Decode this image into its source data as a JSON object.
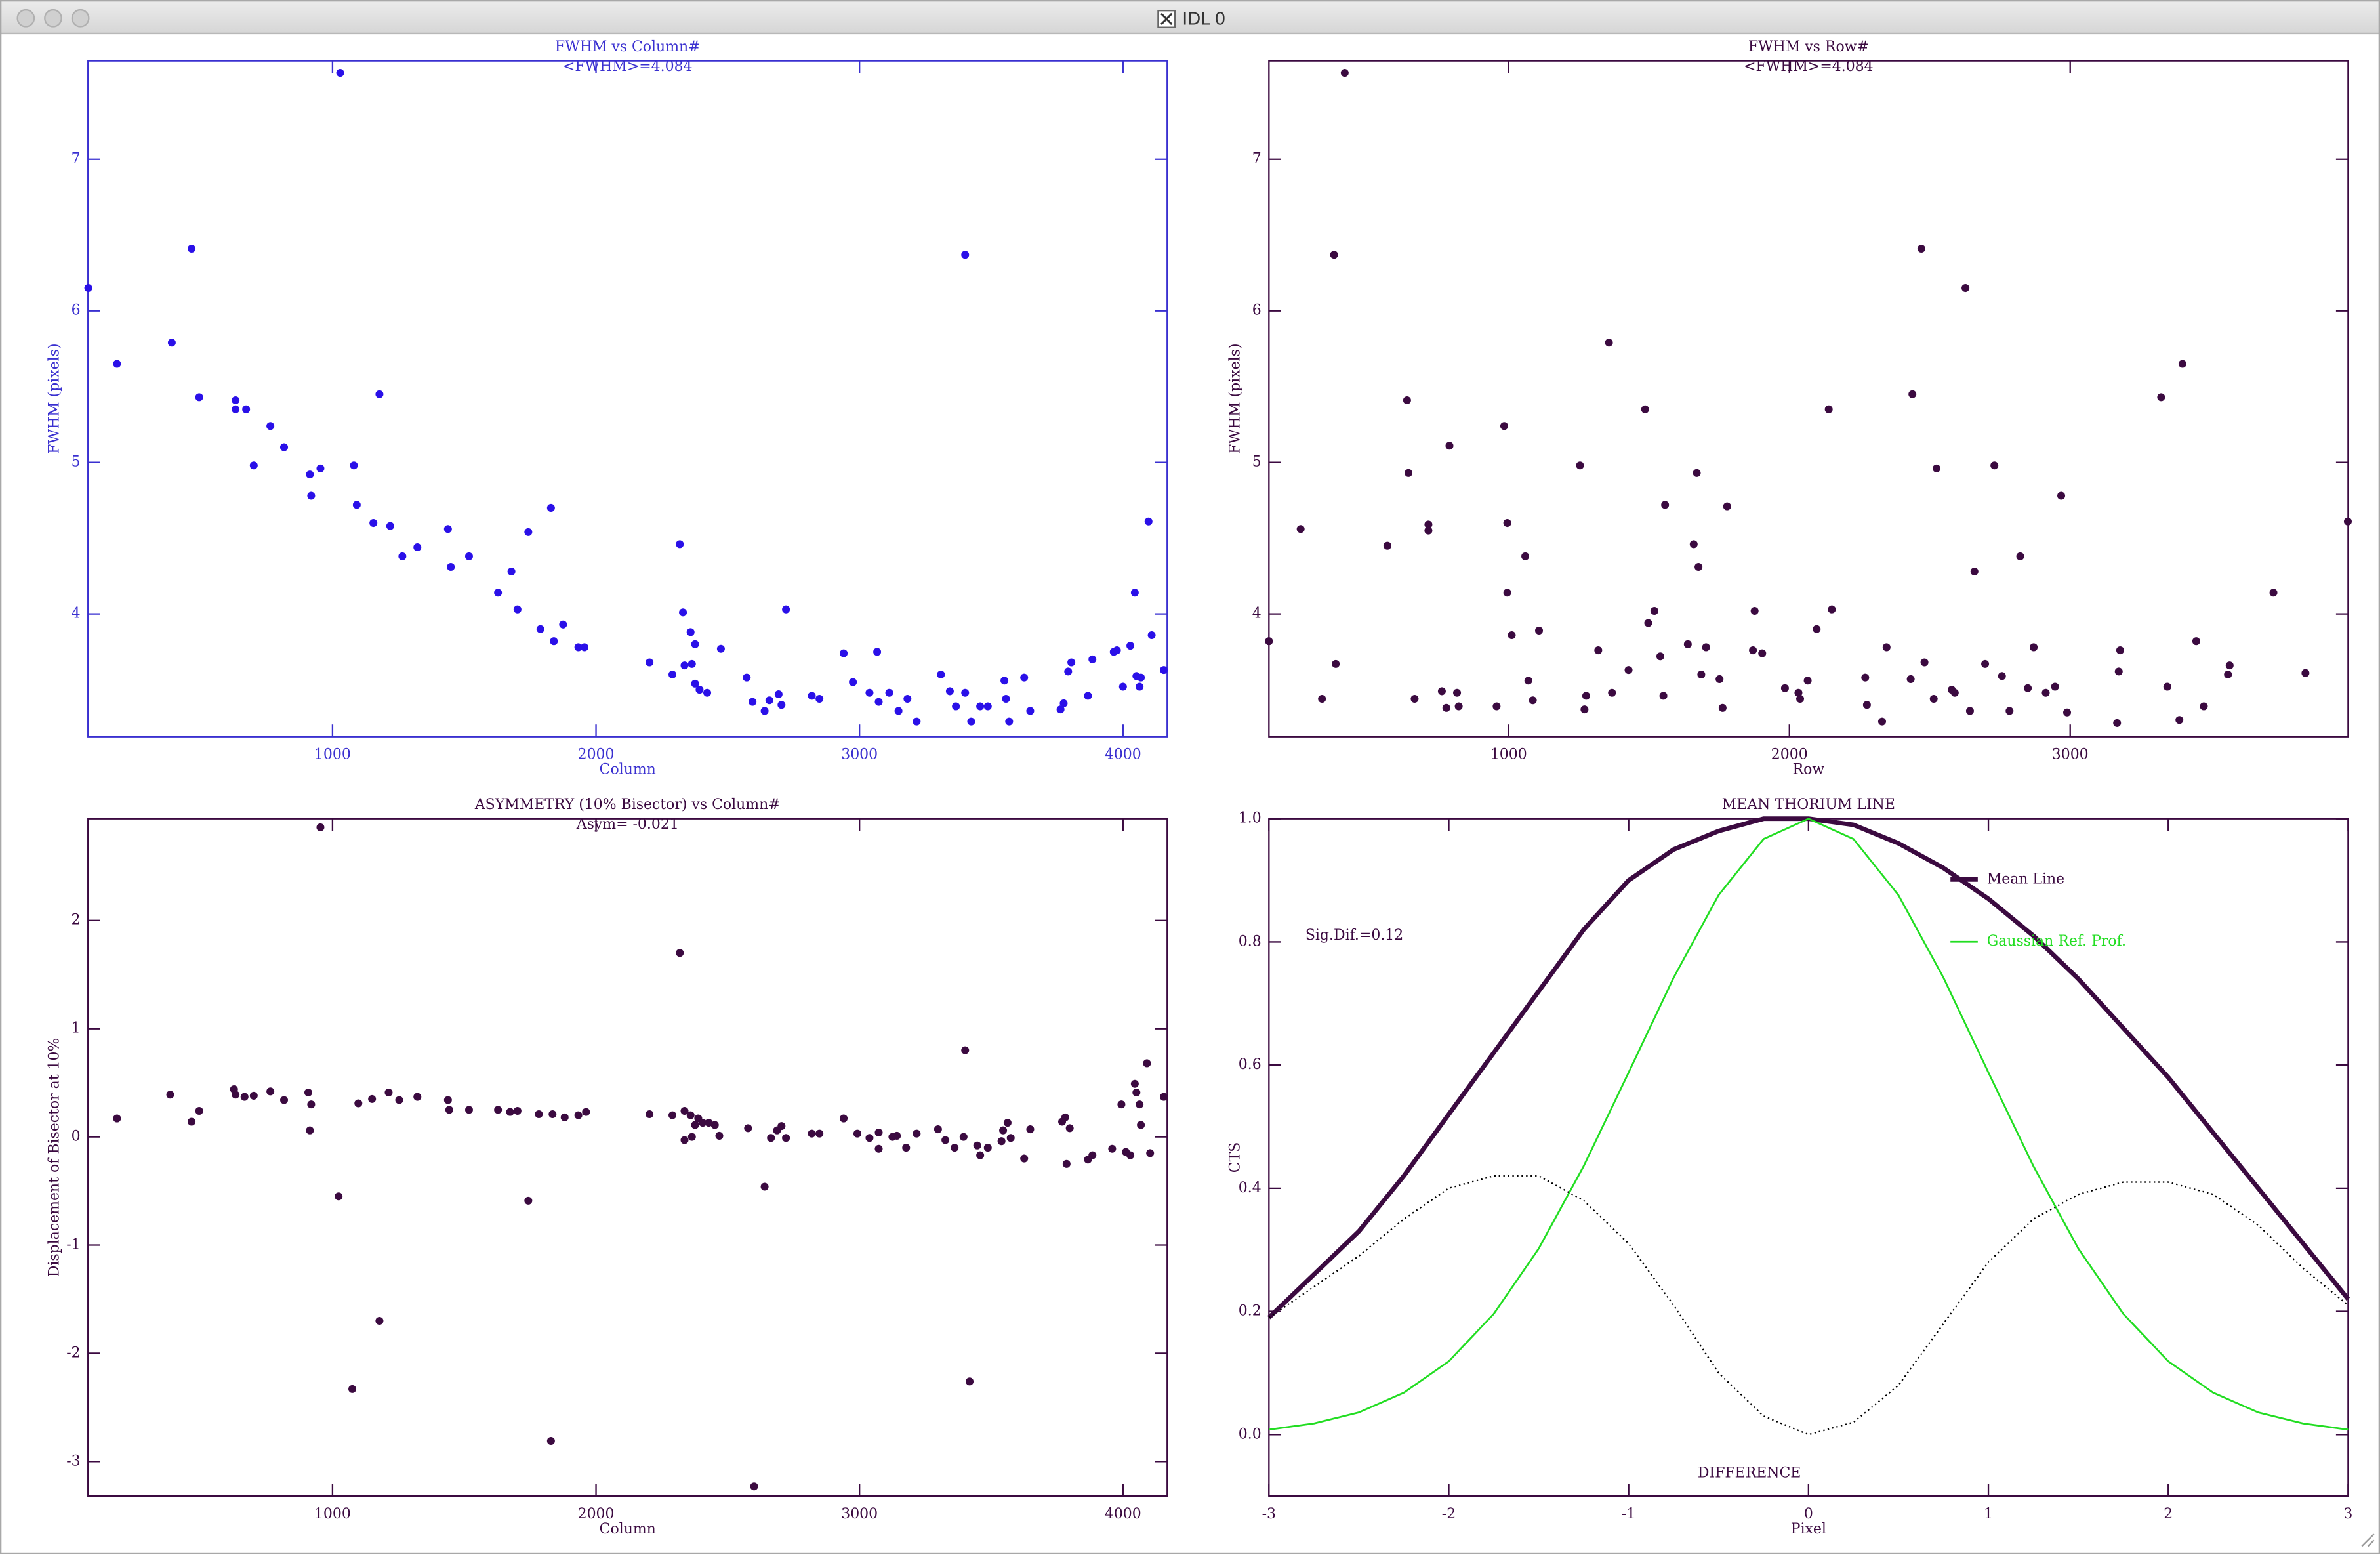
{
  "window": {
    "title": "IDL 0"
  },
  "chart_data": [
    {
      "type": "scatter",
      "title": "FWHM  vs  Column#",
      "subtitle": "<FWHM>=4.084",
      "x_label": "Column",
      "y_label": "FWHM (pixels)",
      "color": "#2a10e8",
      "axis_color": "#3a30d0",
      "xlim": [
        72,
        4168
      ],
      "ylim": [
        3.19,
        7.65
      ],
      "xticks": [
        1000,
        2000,
        3000,
        4000
      ],
      "yticks": [
        4,
        5,
        6,
        7
      ],
      "x": [
        73,
        182,
        390,
        465,
        494,
        632,
        632,
        672,
        701,
        764,
        816,
        914,
        919,
        954,
        1029,
        1081,
        1092,
        1155,
        1178,
        1219,
        1265,
        1322,
        1438,
        1449,
        1518,
        1628,
        1679,
        1702,
        1743,
        1789,
        1829,
        1840,
        1875,
        1933,
        1956,
        2203,
        2290,
        2318,
        2330,
        2336,
        2359,
        2364,
        2376,
        2376,
        2393,
        2422,
        2474,
        2572,
        2594,
        2640,
        2658,
        2693,
        2704,
        2721,
        2819,
        2848,
        2940,
        2975,
        3038,
        3067,
        3073,
        3113,
        3148,
        3182,
        3217,
        3309,
        3343,
        3366,
        3401,
        3401,
        3424,
        3458,
        3487,
        3550,
        3556,
        3568,
        3625,
        3648,
        3763,
        3775,
        3792,
        3804,
        3867,
        3884,
        3965,
        3977,
        4000,
        4028,
        4045,
        4051,
        4063,
        4068,
        4097,
        4109,
        4155
      ],
      "values": [
        6.15,
        5.65,
        5.79,
        6.41,
        5.43,
        5.41,
        5.35,
        5.35,
        4.98,
        5.24,
        5.1,
        4.92,
        4.78,
        4.96,
        7.57,
        4.98,
        4.72,
        4.6,
        5.45,
        4.58,
        4.38,
        4.44,
        4.56,
        4.31,
        4.38,
        4.14,
        4.28,
        4.03,
        4.54,
        3.9,
        4.7,
        3.82,
        3.93,
        3.78,
        3.78,
        3.68,
        3.6,
        4.46,
        4.01,
        3.66,
        3.88,
        3.67,
        3.8,
        3.54,
        3.5,
        3.48,
        3.77,
        3.58,
        3.42,
        3.36,
        3.43,
        3.47,
        3.4,
        4.03,
        3.46,
        3.44,
        3.74,
        3.55,
        3.48,
        3.75,
        3.42,
        3.48,
        3.36,
        3.44,
        3.29,
        3.6,
        3.49,
        3.39,
        6.37,
        3.48,
        3.29,
        3.39,
        3.39,
        3.56,
        3.44,
        3.29,
        3.58,
        3.36,
        3.37,
        3.41,
        3.62,
        3.68,
        3.46,
        3.7,
        3.75,
        3.76,
        3.52,
        3.79,
        4.14,
        3.59,
        3.52,
        3.58,
        4.61,
        3.86,
        3.63
      ]
    },
    {
      "type": "scatter",
      "title": "FWHM  vs  Row#",
      "subtitle": "<FWHM>=4.084",
      "x_label": "Row",
      "y_label": "FWHM (pixels)",
      "color": "#3b0a40",
      "axis_color": "#3b0a40",
      "xlim": [
        146,
        3990
      ],
      "ylim": [
        3.19,
        7.65
      ],
      "xticks": [
        1000,
        2000,
        3000
      ],
      "yticks": [
        4,
        5,
        6,
        7
      ],
      "x": [
        146,
        259,
        335,
        378,
        384,
        416,
        568,
        638,
        643,
        665,
        714,
        714,
        762,
        778,
        789,
        816,
        822,
        957,
        984,
        995,
        995,
        1011,
        1059,
        1070,
        1086,
        1108,
        1254,
        1270,
        1276,
        1319,
        1357,
        1368,
        1427,
        1486,
        1497,
        1519,
        1540,
        1551,
        1557,
        1638,
        1659,
        1670,
        1676,
        1686,
        1703,
        1751,
        1762,
        1778,
        1876,
        1870,
        1903,
        1984,
        2032,
        2038,
        2065,
        2097,
        2140,
        2151,
        2270,
        2276,
        2330,
        2346,
        2432,
        2438,
        2470,
        2481,
        2514,
        2524,
        2578,
        2589,
        2627,
        2643,
        2659,
        2697,
        2730,
        2757,
        2784,
        2822,
        2849,
        2870,
        2913,
        2946,
        2968,
        2989,
        3167,
        3173,
        3178,
        3324,
        3346,
        3389,
        3400,
        3449,
        3476,
        3562,
        3568,
        3724,
        3838,
        3989
      ],
      "values": [
        3.82,
        4.56,
        3.44,
        6.37,
        3.67,
        7.57,
        4.45,
        5.41,
        4.93,
        3.44,
        4.59,
        4.55,
        3.49,
        3.38,
        5.11,
        3.48,
        3.39,
        3.39,
        5.24,
        4.6,
        4.14,
        3.86,
        4.38,
        3.56,
        3.43,
        3.89,
        4.98,
        3.37,
        3.46,
        3.76,
        5.79,
        3.48,
        3.63,
        5.35,
        3.94,
        4.02,
        3.72,
        3.46,
        4.72,
        3.8,
        4.46,
        4.93,
        4.31,
        3.6,
        3.78,
        3.57,
        3.38,
        4.71,
        4.02,
        3.76,
        3.74,
        3.51,
        3.48,
        3.44,
        3.56,
        3.9,
        5.35,
        4.03,
        3.58,
        3.4,
        3.29,
        3.78,
        3.57,
        5.45,
        6.41,
        3.68,
        3.44,
        4.96,
        3.5,
        3.48,
        6.15,
        3.36,
        4.28,
        3.67,
        4.98,
        3.59,
        3.36,
        4.38,
        3.51,
        3.78,
        3.48,
        3.52,
        4.78,
        3.35,
        3.28,
        3.62,
        3.76,
        5.43,
        3.52,
        3.3,
        5.65,
        3.82,
        3.39,
        3.6,
        3.66,
        4.14,
        3.61,
        4.61
      ]
    },
    {
      "type": "scatter",
      "title": "ASYMMETRY (10% Bisector) vs  Column#",
      "subtitle": "Asym= -0.021",
      "x_label": "Column",
      "y_label": "Displacement of Bisector at 10%",
      "color": "#3b0a40",
      "axis_color": "#3b0a40",
      "xlim": [
        72,
        4168
      ],
      "ylim": [
        -3.32,
        2.94
      ],
      "xticks": [
        1000,
        2000,
        3000,
        4000
      ],
      "yticks": [
        -3,
        -2,
        -1,
        0,
        1,
        2
      ],
      "x": [
        182,
        384,
        465,
        494,
        626,
        632,
        666,
        701,
        764,
        816,
        908,
        914,
        919,
        954,
        1023,
        1075,
        1098,
        1150,
        1178,
        1213,
        1253,
        1322,
        1438,
        1443,
        1518,
        1628,
        1674,
        1702,
        1743,
        1783,
        1829,
        1835,
        1881,
        1933,
        1962,
        2203,
        2290,
        2318,
        2336,
        2336,
        2359,
        2364,
        2376,
        2388,
        2405,
        2428,
        2451,
        2468,
        2577,
        2600,
        2640,
        2664,
        2687,
        2704,
        2721,
        2819,
        2848,
        2940,
        2992,
        3038,
        3073,
        3073,
        3125,
        3142,
        3177,
        3217,
        3298,
        3326,
        3361,
        3401,
        3395,
        3418,
        3447,
        3458,
        3487,
        3539,
        3545,
        3562,
        3574,
        3625,
        3648,
        3769,
        3781,
        3786,
        3798,
        3867,
        3884,
        3959,
        3994,
        4011,
        4028,
        4045,
        4051,
        4063,
        4068,
        4091,
        4103,
        4155
      ],
      "values": [
        0.17,
        0.39,
        0.14,
        0.24,
        0.44,
        0.39,
        0.37,
        0.38,
        0.42,
        0.34,
        0.41,
        0.06,
        0.3,
        2.86,
        -0.55,
        -2.33,
        0.31,
        0.35,
        -1.7,
        0.41,
        0.34,
        0.37,
        0.34,
        0.25,
        0.25,
        0.25,
        0.23,
        0.24,
        -0.59,
        0.21,
        -2.81,
        0.21,
        0.18,
        0.2,
        0.23,
        0.21,
        0.2,
        1.7,
        0.24,
        -0.03,
        0.2,
        0,
        0.11,
        0.17,
        0.13,
        0.13,
        0.11,
        0.01,
        0.08,
        -3.23,
        -0.46,
        -0.01,
        0.06,
        0.1,
        -0.01,
        0.03,
        0.03,
        0.17,
        0.03,
        -0.01,
        -0.11,
        0.04,
        0,
        0.01,
        -0.1,
        0.03,
        0.07,
        -0.03,
        -0.1,
        0.8,
        0,
        -2.26,
        -0.08,
        -0.17,
        -0.1,
        -0.04,
        0.06,
        0.13,
        -0.01,
        -0.2,
        0.07,
        0.14,
        0.18,
        -0.25,
        0.08,
        -0.21,
        -0.17,
        -0.11,
        0.3,
        -0.14,
        -0.17,
        0.49,
        0.41,
        0.3,
        0.11,
        0.68,
        -0.15,
        0.37
      ]
    },
    {
      "type": "line",
      "title": "MEAN THORIUM LINE",
      "x_label": "Pixel",
      "y_label": "CTS",
      "axis_color": "#3b0a40",
      "xlim": [
        -3,
        3
      ],
      "ylim": [
        -0.1,
        1.0
      ],
      "xticks": [
        -3,
        -2,
        -1,
        0,
        1,
        2,
        3
      ],
      "yticks": [
        {
          "value": 0,
          "label": "0.0"
        },
        0.2,
        0.4,
        0.6,
        0.8,
        {
          "value": 1,
          "label": "1.0"
        }
      ],
      "legend": "upper right",
      "annotations": [
        "Sig.Dif.=0.12",
        "DIFFERENCE"
      ],
      "x": [
        -3,
        -2.75,
        -2.5,
        -2.25,
        -2,
        -1.75,
        -1.5,
        -1.25,
        -1,
        -0.75,
        -0.5,
        -0.25,
        0,
        0.25,
        0.5,
        0.75,
        1,
        1.25,
        1.5,
        1.75,
        2,
        2.25,
        2.5,
        2.75,
        3
      ],
      "series": [
        {
          "name": "Mean Line",
          "color": "#3b0a40",
          "style": "thick",
          "values": [
            0.19,
            0.26,
            0.33,
            0.42,
            0.52,
            0.62,
            0.72,
            0.82,
            0.9,
            0.95,
            0.98,
            1,
            1,
            0.99,
            0.96,
            0.92,
            0.87,
            0.81,
            0.74,
            0.66,
            0.58,
            0.49,
            0.4,
            0.31,
            0.22
          ]
        },
        {
          "name": "Gaussian Ref. Prof.",
          "color": "#22dd22",
          "style": "solid",
          "values": [
            0.008,
            0.018,
            0.036,
            0.068,
            0.119,
            0.196,
            0.302,
            0.436,
            0.588,
            0.742,
            0.876,
            0.967,
            1,
            0.967,
            0.876,
            0.742,
            0.588,
            0.436,
            0.302,
            0.196,
            0.119,
            0.068,
            0.036,
            0.018,
            0.008
          ]
        },
        {
          "color": "#000000",
          "style": "dotted",
          "values": [
            0.19,
            0.24,
            0.29,
            0.35,
            0.4,
            0.42,
            0.42,
            0.38,
            0.31,
            0.21,
            0.1,
            0.03,
            0,
            0.02,
            0.08,
            0.18,
            0.28,
            0.35,
            0.39,
            0.41,
            0.41,
            0.39,
            0.34,
            0.27,
            0.21
          ]
        }
      ]
    }
  ]
}
